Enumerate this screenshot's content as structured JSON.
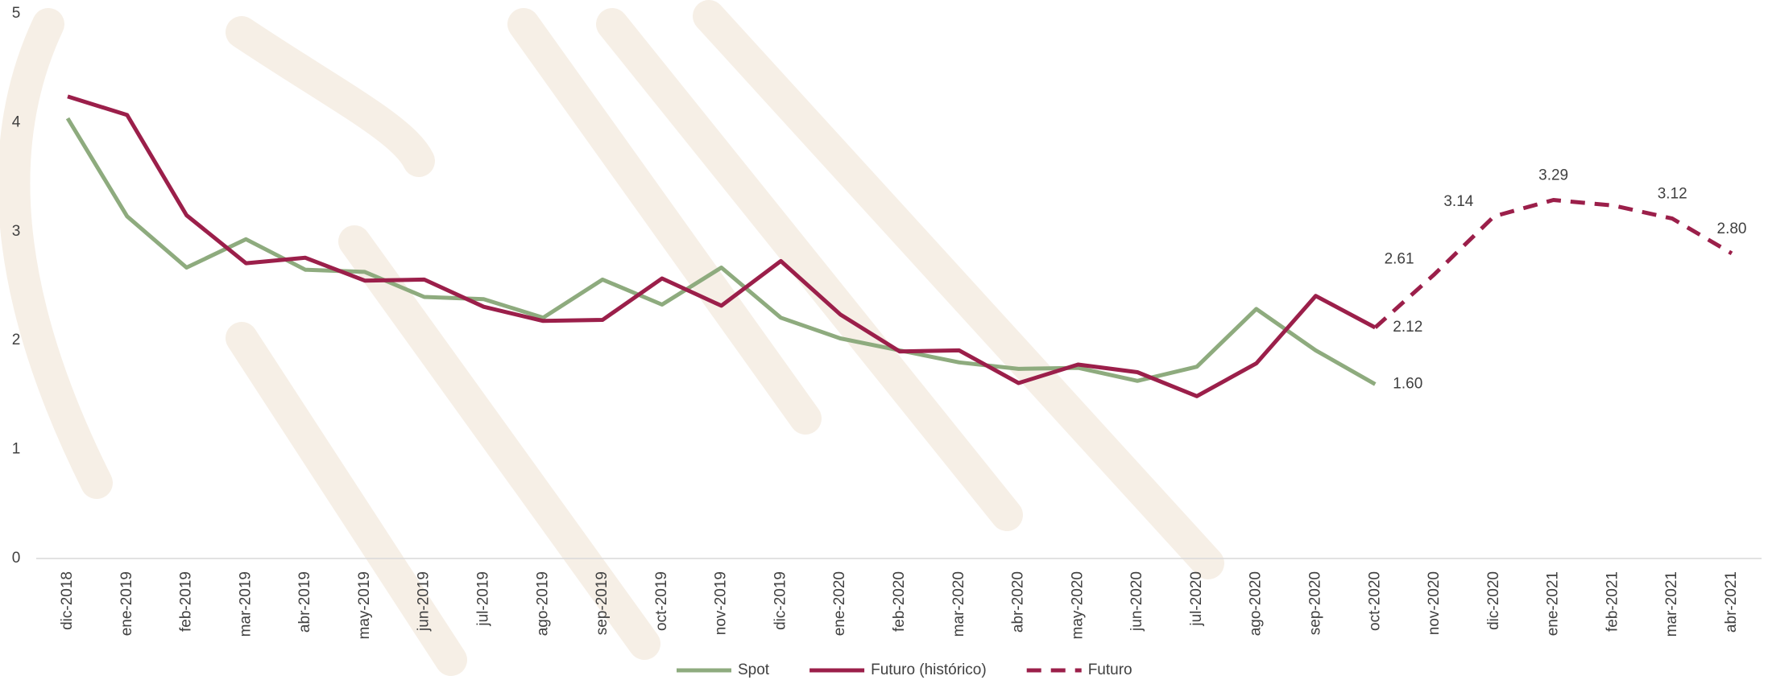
{
  "chart_data": {
    "type": "line",
    "categories": [
      "dic-2018",
      "ene-2019",
      "feb-2019",
      "mar-2019",
      "abr-2019",
      "may-2019",
      "jun-2019",
      "jul-2019",
      "ago-2019",
      "sep-2019",
      "oct-2019",
      "nov-2019",
      "dic-2019",
      "ene-2020",
      "feb-2020",
      "mar-2020",
      "abr-2020",
      "may-2020",
      "jun-2020",
      "jul-2020",
      "ago-2020",
      "sep-2020",
      "oct-2020",
      "nov-2020",
      "dic-2020",
      "ene-2021",
      "feb-2021",
      "mar-2021",
      "abr-2021"
    ],
    "series": [
      {
        "name": "Spot",
        "color": "#8eab7e",
        "dash": false,
        "values": [
          4.04,
          3.14,
          2.67,
          2.93,
          2.65,
          2.63,
          2.4,
          2.38,
          2.21,
          2.56,
          2.33,
          2.67,
          2.21,
          2.02,
          1.91,
          1.8,
          1.74,
          1.75,
          1.63,
          1.76,
          2.29,
          1.91,
          1.6,
          null,
          null,
          null,
          null,
          null,
          null
        ],
        "value_labels": [
          null,
          null,
          null,
          null,
          null,
          null,
          null,
          null,
          null,
          null,
          null,
          null,
          null,
          null,
          null,
          null,
          null,
          null,
          null,
          null,
          null,
          null,
          "1.60",
          null,
          null,
          null,
          null,
          null,
          null
        ]
      },
      {
        "name": "Futuro (histórico)",
        "color": "#9b1f4a",
        "dash": false,
        "values": [
          4.24,
          4.07,
          3.15,
          2.71,
          2.76,
          2.55,
          2.56,
          2.31,
          2.18,
          2.19,
          2.57,
          2.32,
          2.73,
          2.24,
          1.9,
          1.91,
          1.61,
          1.78,
          1.71,
          1.49,
          1.79,
          2.41,
          2.12,
          null,
          null,
          null,
          null,
          null,
          null
        ],
        "value_labels": [
          null,
          null,
          null,
          null,
          null,
          null,
          null,
          null,
          null,
          null,
          null,
          null,
          null,
          null,
          null,
          null,
          null,
          null,
          null,
          null,
          null,
          null,
          "2.12",
          null,
          null,
          null,
          null,
          null,
          null
        ]
      },
      {
        "name": "Futuro",
        "color": "#9b1f4a",
        "dash": true,
        "values": [
          null,
          null,
          null,
          null,
          null,
          null,
          null,
          null,
          null,
          null,
          null,
          null,
          null,
          null,
          null,
          null,
          null,
          null,
          null,
          null,
          null,
          null,
          2.12,
          2.61,
          3.14,
          3.29,
          3.24,
          3.12,
          2.8
        ],
        "value_labels": [
          null,
          null,
          null,
          null,
          null,
          null,
          null,
          null,
          null,
          null,
          null,
          null,
          null,
          null,
          null,
          null,
          null,
          null,
          null,
          null,
          null,
          null,
          null,
          "2.61",
          "3.14",
          "3.29",
          null,
          "3.12",
          "2.80"
        ]
      }
    ],
    "ylim": [
      0,
      5
    ],
    "yticks": [
      0,
      1,
      2,
      3,
      4,
      5
    ],
    "grid": false,
    "legend": "bottom"
  }
}
